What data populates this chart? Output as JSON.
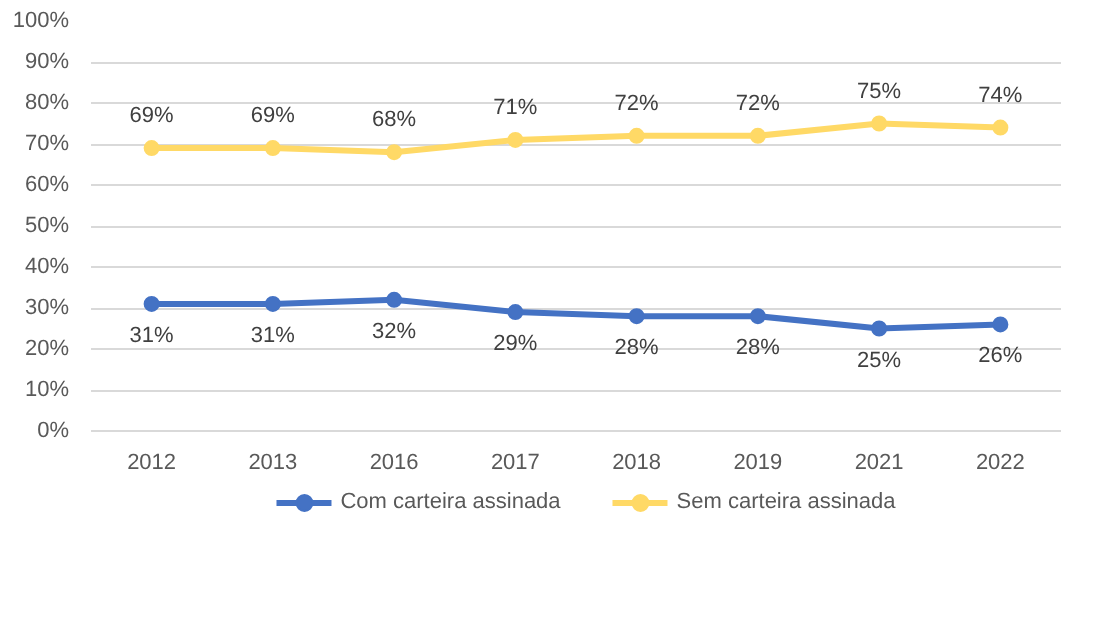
{
  "chart_data": {
    "type": "line",
    "categories": [
      "2012",
      "2013",
      "2016",
      "2017",
      "2018",
      "2019",
      "2021",
      "2022"
    ],
    "series": [
      {
        "name": "Com carteira assinada",
        "color": "#4472c4",
        "values": [
          31,
          31,
          32,
          29,
          28,
          28,
          25,
          26
        ],
        "value_labels": [
          "31%",
          "31%",
          "32%",
          "29%",
          "28%",
          "28%",
          "25%",
          "26%"
        ]
      },
      {
        "name": "Sem carteira assinada",
        "color": "#ffd966",
        "values": [
          69,
          69,
          68,
          71,
          72,
          72,
          75,
          74
        ],
        "value_labels": [
          "69%",
          "69%",
          "68%",
          "71%",
          "72%",
          "72%",
          "75%",
          "74%"
        ]
      }
    ],
    "ylim": [
      0,
      100
    ],
    "yticks": [
      {
        "value": 0,
        "label": "0%"
      },
      {
        "value": 10,
        "label": "10%"
      },
      {
        "value": 20,
        "label": "20%"
      },
      {
        "value": 30,
        "label": "30%"
      },
      {
        "value": 40,
        "label": "40%"
      },
      {
        "value": 50,
        "label": "50%"
      },
      {
        "value": 60,
        "label": "60%"
      },
      {
        "value": 70,
        "label": "70%"
      },
      {
        "value": 80,
        "label": "80%"
      },
      {
        "value": 90,
        "label": "90%"
      },
      {
        "value": 100,
        "label": "100%"
      }
    ],
    "grid": "y",
    "legend": "bottom",
    "marker": "circle",
    "line_style": "solid"
  }
}
